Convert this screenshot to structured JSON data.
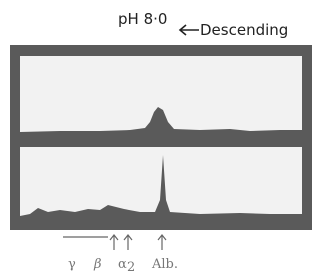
{
  "header": {
    "title": "pH 8·0",
    "direction": "Descending"
  },
  "labels": [
    {
      "text": "γ"
    },
    {
      "text": "β"
    },
    {
      "symbol": "α",
      "subscript": "2"
    },
    {
      "text": "Alb."
    }
  ]
}
